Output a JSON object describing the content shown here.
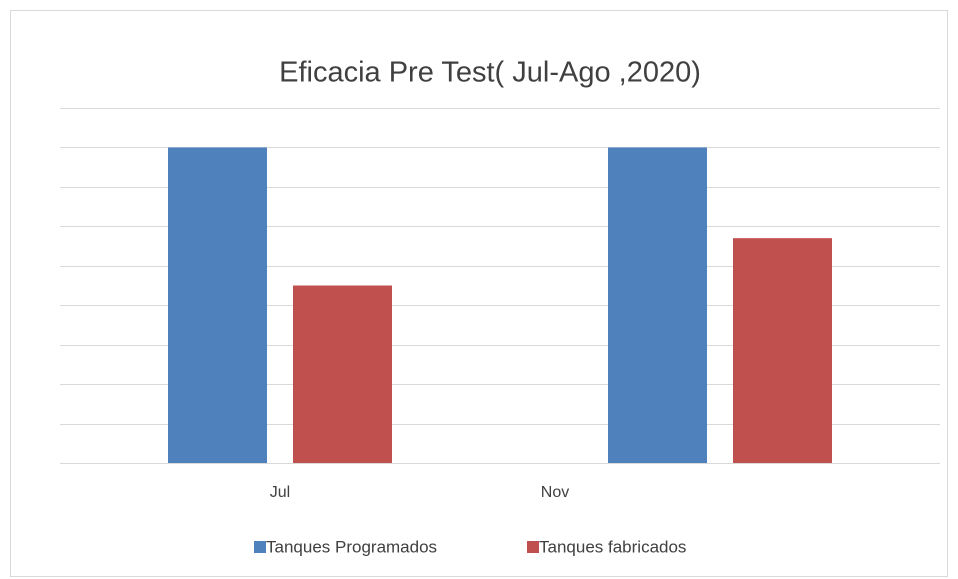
{
  "chart_data": {
    "type": "bar",
    "title": "Eficacia Pre Test( Jul-Ago ,2020)",
    "categories": [
      "Jul",
      "Nov"
    ],
    "series": [
      {
        "name": "Tanques Programados",
        "color": "#4f81bd",
        "values": [
          8,
          8
        ]
      },
      {
        "name": "Tanques fabricados",
        "color": "#c0504d",
        "values": [
          4.5,
          5.7
        ]
      }
    ],
    "ylim": [
      0,
      9
    ],
    "yticks": [
      0,
      1,
      2,
      3,
      4,
      5,
      6,
      7,
      8,
      9
    ],
    "grid": true,
    "legend": "bottom"
  }
}
